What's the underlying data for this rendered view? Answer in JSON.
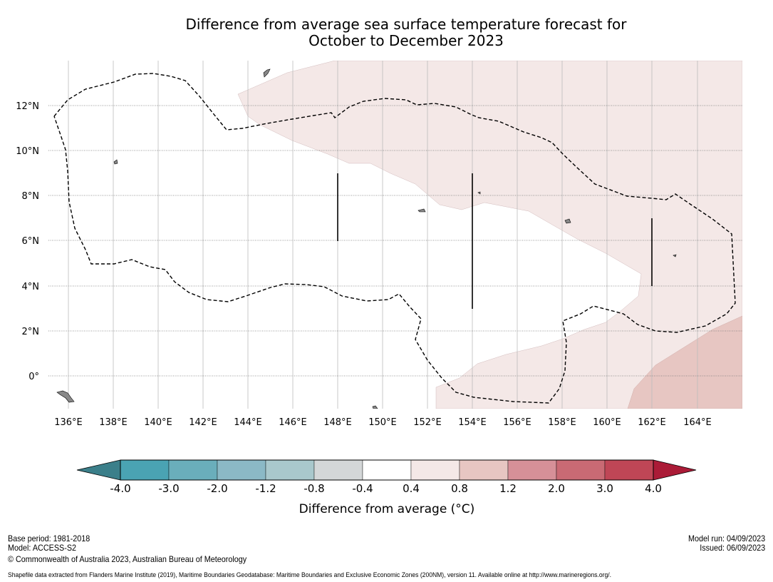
{
  "title": {
    "line1": "Difference from average sea surface temperature forecast for",
    "line2": "October to December 2023"
  },
  "map": {
    "lon_labels": [
      "136°E",
      "138°E",
      "140°E",
      "142°E",
      "144°E",
      "146°E",
      "148°E",
      "150°E",
      "152°E",
      "154°E",
      "156°E",
      "158°E",
      "160°E",
      "162°E",
      "164°E"
    ],
    "lat_labels": [
      "12°N",
      "10°N",
      "8°N",
      "6°N",
      "4°N",
      "2°N",
      "0°"
    ],
    "anomaly_regions": [
      {
        "category": "0.4 to 0.8",
        "color": "#f4e8e7"
      },
      {
        "category": "0.8 to 1.2",
        "color": "#e7c6c2"
      }
    ]
  },
  "colorbar": {
    "label": "Difference from average (°C)",
    "ticks": [
      "-4.0",
      "-3.0",
      "-2.0",
      "-1.2",
      "-0.8",
      "-0.4",
      "0.4",
      "0.8",
      "1.2",
      "2.0",
      "3.0",
      "4.0"
    ],
    "colors": [
      "#3b7f8a",
      "#4aa3b3",
      "#6aaebb",
      "#8bb9c6",
      "#a9c8cc",
      "#d4d7d8",
      "#ffffff",
      "#f4e8e7",
      "#e7c6c2",
      "#d69098",
      "#c96a74",
      "#bf4656",
      "#ab1b37"
    ]
  },
  "footer": {
    "base_period": "Base period: 1981-2018",
    "model": "Model: ACCESS-S2",
    "copyright": "© Commonwealth of Australia 2023, Australian Bureau of Meteorology",
    "model_run": "Model run: 04/09/2023",
    "issued": "Issued: 06/09/2023",
    "shapefile": "Shapefile data extracted from Flanders Marine Institute (2019), Maritime Boundaries Geodatabase: Maritime Boundaries and Exclusive Economic Zones (200NM), version 11. Available online at http://www.marineregions.org/."
  }
}
